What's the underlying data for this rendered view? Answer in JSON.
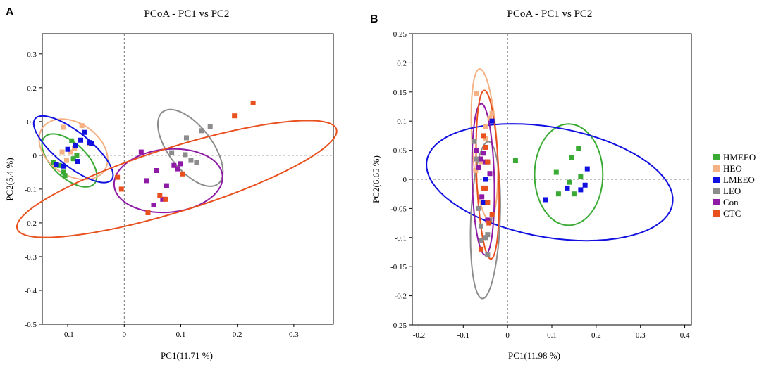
{
  "legend": {
    "items": [
      {
        "label": "HMEEO",
        "color": "#3aaa35"
      },
      {
        "label": "HEO",
        "color": "#f4b183"
      },
      {
        "label": "LMEEO",
        "color": "#1010e0"
      },
      {
        "label": "LEO",
        "color": "#8c8c8c"
      },
      {
        "label": "Con",
        "color": "#8e1aa6"
      },
      {
        "label": "CTC",
        "color": "#e8501e"
      }
    ]
  },
  "chart_data": [
    {
      "panel_label": "A",
      "type": "scatter",
      "title": "PCoA - PC1 vs PC2",
      "xlabel": "PC1(11.71 %)",
      "ylabel": "PC2(5.4 %)",
      "xlim": [
        -0.145,
        0.37
      ],
      "ylim": [
        -0.5,
        0.36
      ],
      "xticks": [
        -0.1,
        0,
        0.1,
        0.2,
        0.3
      ],
      "xticklabels": [
        "-0.1",
        "0",
        "0.1",
        "0.2",
        "0.3"
      ],
      "yticks": [
        -0.5,
        -0.4,
        -0.3,
        -0.2,
        -0.1,
        0,
        0.1,
        0.2,
        0.3
      ],
      "yticklabels": [
        "-0.5",
        "-0.4",
        "-0.3",
        "-0.2",
        "-0.1",
        "0",
        "0.1",
        "0.2",
        "0.3"
      ],
      "series": [
        {
          "name": "HMEEO",
          "color": "#3aaa35",
          "points": [
            [
              -0.125,
              -0.02
            ],
            [
              -0.115,
              -0.03
            ],
            [
              -0.107,
              -0.05
            ],
            [
              -0.093,
              0.043
            ],
            [
              -0.084,
              0.0
            ],
            [
              -0.09,
              -0.01
            ],
            [
              -0.105,
              -0.06
            ]
          ],
          "ellipse": {
            "cx": -0.097,
            "cy": -0.015,
            "rx": 0.036,
            "ry": 0.085,
            "angle": 25
          }
        },
        {
          "name": "HEO",
          "color": "#f4b183",
          "points": [
            [
              -0.108,
              0.083
            ],
            [
              -0.102,
              -0.015
            ],
            [
              -0.095,
              0.01
            ],
            [
              -0.075,
              0.088
            ],
            [
              -0.062,
              0.035
            ],
            [
              -0.11,
              0.01
            ],
            [
              -0.088,
              0.02
            ]
          ],
          "ellipse": {
            "cx": -0.09,
            "cy": 0.018,
            "rx": 0.055,
            "ry": 0.093,
            "angle": 20
          }
        },
        {
          "name": "LMEEO",
          "color": "#1010e0",
          "points": [
            [
              -0.12,
              -0.028
            ],
            [
              -0.108,
              -0.032
            ],
            [
              -0.1,
              0.018
            ],
            [
              -0.087,
              0.03
            ],
            [
              -0.077,
              0.045
            ],
            [
              -0.07,
              0.068
            ],
            [
              -0.062,
              0.038
            ],
            [
              -0.083,
              -0.018
            ],
            [
              -0.058,
              0.035
            ]
          ],
          "ellipse": {
            "cx": -0.09,
            "cy": 0.018,
            "rx": 0.038,
            "ry": 0.115,
            "angle": 33
          }
        },
        {
          "name": "LEO",
          "color": "#8c8c8c",
          "points": [
            [
              0.084,
              0.008
            ],
            [
              0.1,
              -0.025
            ],
            [
              0.108,
              0.002
            ],
            [
              0.11,
              0.052
            ],
            [
              0.118,
              -0.015
            ],
            [
              0.128,
              -0.02
            ],
            [
              0.137,
              0.073
            ],
            [
              0.152,
              0.085
            ]
          ],
          "ellipse": {
            "cx": 0.117,
            "cy": 0.022,
            "rx": 0.043,
            "ry": 0.12,
            "angle": 20
          }
        },
        {
          "name": "Con",
          "color": "#8e1aa6",
          "points": [
            [
              0.03,
              0.01
            ],
            [
              0.04,
              -0.075
            ],
            [
              0.052,
              -0.147
            ],
            [
              0.057,
              -0.045
            ],
            [
              0.075,
              -0.09
            ],
            [
              0.088,
              -0.03
            ],
            [
              0.1,
              -0.025
            ],
            [
              0.095,
              -0.04
            ],
            [
              0.068,
              -0.13
            ]
          ],
          "ellipse": {
            "cx": 0.078,
            "cy": -0.075,
            "rx": 0.1,
            "ry": 0.09,
            "angle": 40
          }
        },
        {
          "name": "CTC",
          "color": "#e8501e",
          "points": [
            [
              -0.012,
              -0.065
            ],
            [
              -0.005,
              -0.1
            ],
            [
              0.042,
              -0.17
            ],
            [
              0.063,
              -0.12
            ],
            [
              0.073,
              -0.13
            ],
            [
              0.103,
              -0.055
            ],
            [
              0.195,
              0.117
            ],
            [
              0.228,
              0.155
            ]
          ],
          "ellipse": {
            "cx": 0.093,
            "cy": -0.07,
            "rx": 0.32,
            "ry": 0.088,
            "angle": 29
          }
        }
      ]
    },
    {
      "panel_label": "B",
      "type": "scatter",
      "title": "PCoA - PC1 vs PC2",
      "xlabel": "PC1(11.98 %)",
      "ylabel": "PC2(6.65 %)",
      "xlim": [
        -0.215,
        0.415
      ],
      "ylim": [
        -0.25,
        0.25
      ],
      "xticks": [
        -0.2,
        -0.1,
        0,
        0.1,
        0.2,
        0.3,
        0.4
      ],
      "xticklabels": [
        "-0.2",
        "-0.1",
        "0",
        "0.1",
        "0.2",
        "0.3",
        "0.4"
      ],
      "yticks": [
        -0.25,
        -0.2,
        -0.15,
        -0.1,
        -0.05,
        0,
        0.05,
        0.1,
        0.15,
        0.2,
        0.25
      ],
      "yticklabels": [
        "-0.25",
        "-0.2",
        "-0.15",
        "-0.1",
        "-0.05",
        "0",
        "0.05",
        "0.1",
        "0.15",
        "0.2",
        "0.25"
      ],
      "series": [
        {
          "name": "HMEEO",
          "color": "#3aaa35",
          "points": [
            [
              0.018,
              0.032
            ],
            [
              0.11,
              0.012
            ],
            [
              0.115,
              -0.025
            ],
            [
              0.14,
              -0.005
            ],
            [
              0.145,
              0.038
            ],
            [
              0.16,
              0.053
            ],
            [
              0.165,
              0.005
            ],
            [
              0.15,
              -0.025
            ]
          ],
          "ellipse": {
            "cx": 0.138,
            "cy": 0.008,
            "rx": 0.077,
            "ry": 0.087,
            "angle": 0
          }
        },
        {
          "name": "HEO",
          "color": "#f4b183",
          "points": [
            [
              -0.07,
              0.148
            ],
            [
              -0.05,
              0.09
            ],
            [
              -0.035,
              0.113
            ],
            [
              -0.04,
              0.105
            ],
            [
              -0.072,
              0.015
            ],
            [
              -0.05,
              0.07
            ],
            [
              -0.06,
              0.03
            ]
          ],
          "ellipse": {
            "cx": -0.052,
            "cy": 0.06,
            "rx": 0.028,
            "ry": 0.13,
            "angle": 5
          }
        },
        {
          "name": "LMEEO",
          "color": "#1010e0",
          "points": [
            [
              -0.035,
              0.1
            ],
            [
              -0.05,
              0.0
            ],
            [
              0.085,
              -0.035
            ],
            [
              0.135,
              -0.015
            ],
            [
              0.165,
              -0.018
            ],
            [
              0.175,
              -0.01
            ],
            [
              0.18,
              0.018
            ],
            [
              -0.055,
              -0.04
            ]
          ],
          "ellipse": {
            "cx": 0.095,
            "cy": -0.005,
            "rx": 0.28,
            "ry": 0.095,
            "angle": -7
          }
        },
        {
          "name": "LEO",
          "color": "#8c8c8c",
          "points": [
            [
              -0.075,
              0.065
            ],
            [
              -0.065,
              -0.05
            ],
            [
              -0.06,
              -0.08
            ],
            [
              -0.06,
              -0.105
            ],
            [
              -0.05,
              -0.1
            ],
            [
              -0.045,
              -0.095
            ],
            [
              -0.045,
              -0.13
            ],
            [
              -0.04,
              -0.07
            ],
            [
              -0.07,
              0.035
            ]
          ],
          "ellipse": {
            "cx": -0.05,
            "cy": -0.07,
            "rx": 0.033,
            "ry": 0.135,
            "angle": -3
          }
        },
        {
          "name": "Con",
          "color": "#8e1aa6",
          "points": [
            [
              -0.07,
              0.05
            ],
            [
              -0.065,
              0.02
            ],
            [
              -0.06,
              0.035
            ],
            [
              -0.058,
              -0.03
            ],
            [
              -0.05,
              0.03
            ],
            [
              -0.045,
              0.03
            ],
            [
              -0.04,
              0.01
            ],
            [
              -0.045,
              -0.07
            ],
            [
              -0.055,
              0.045
            ]
          ],
          "ellipse": {
            "cx": -0.055,
            "cy": 0.0,
            "rx": 0.025,
            "ry": 0.13,
            "angle": 2
          }
        },
        {
          "name": "CTC",
          "color": "#e8501e",
          "points": [
            [
              -0.055,
              0.075
            ],
            [
              -0.05,
              0.055
            ],
            [
              -0.045,
              0.03
            ],
            [
              -0.05,
              -0.015
            ],
            [
              -0.045,
              -0.04
            ],
            [
              -0.042,
              -0.075
            ],
            [
              -0.035,
              -0.06
            ],
            [
              -0.06,
              -0.12
            ],
            [
              -0.055,
              -0.015
            ]
          ],
          "ellipse": {
            "cx": -0.045,
            "cy": 0.008,
            "rx": 0.025,
            "ry": 0.145,
            "angle": 3
          }
        }
      ]
    }
  ]
}
